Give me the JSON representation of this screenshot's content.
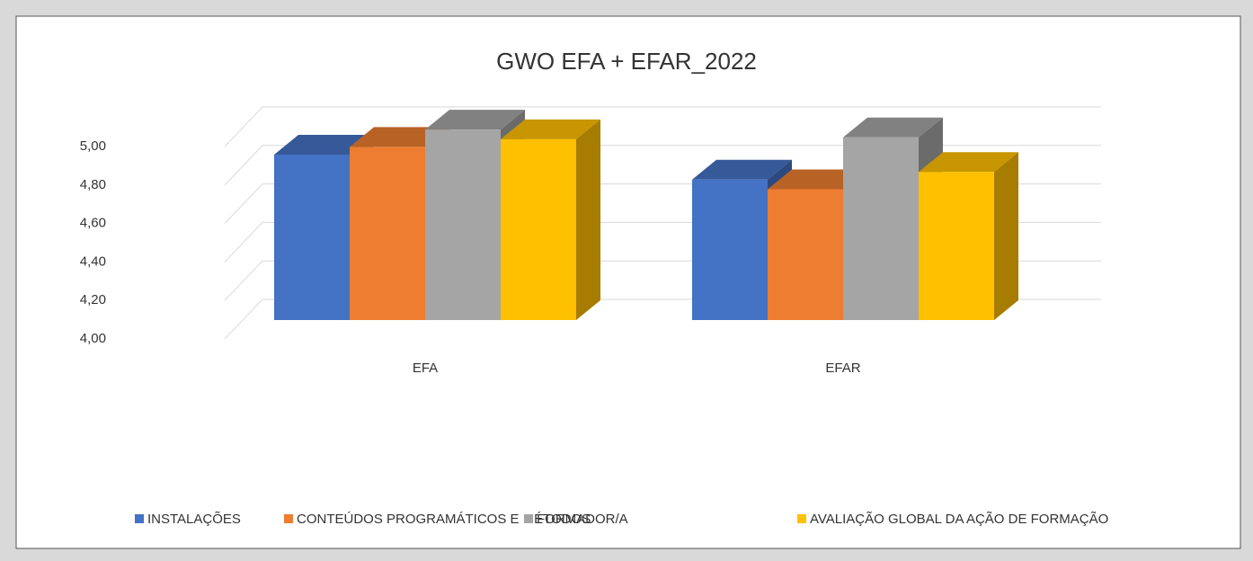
{
  "chart_data": {
    "type": "bar3d",
    "title": "GWO EFA + EFAR_2022",
    "categories": [
      "EFA",
      "EFAR"
    ],
    "series": [
      {
        "name": "INSTALAÇÕES",
        "color": "#4472c4",
        "values": [
          4.86,
          4.73
        ]
      },
      {
        "name": "CONTEÚDOS PROGRAMÁTICOS E MÉTODOS",
        "color": "#ed7d31",
        "values": [
          4.9,
          4.68
        ]
      },
      {
        "name": "FORMADOR/A",
        "color": "#a5a5a5",
        "values": [
          4.99,
          4.95
        ]
      },
      {
        "name": "AVALIAÇÃO GLOBAL DA AÇÃO DE FORMAÇÃO",
        "color": "#ffc000",
        "values": [
          4.94,
          4.77
        ]
      }
    ],
    "ylim": [
      4,
      5
    ],
    "yticks": [
      {
        "value": 4,
        "label": "4,00"
      },
      {
        "value": 4.2,
        "label": "4,20"
      },
      {
        "value": 4.4,
        "label": "4,40"
      },
      {
        "value": 4.6,
        "label": "4,60"
      },
      {
        "value": 4.8,
        "label": "4,80"
      },
      {
        "value": 5,
        "label": "5,00"
      }
    ],
    "grid": true,
    "legend": "bottom"
  }
}
